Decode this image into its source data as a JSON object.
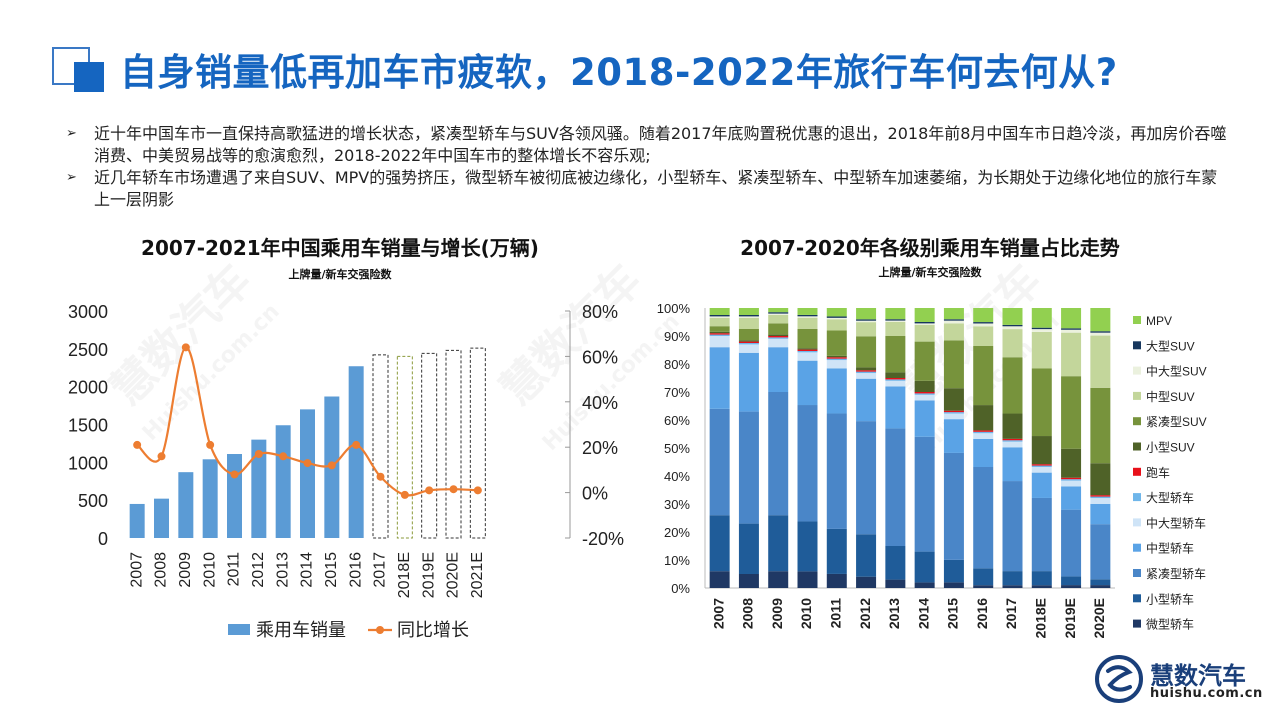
{
  "header": {
    "title": "自身销量低再加车市疲软，2018-2022年旅行车何去何从?"
  },
  "bullets": [
    "近十年中国车市一直保持高歌猛进的增长状态，紧凑型轿车与SUV各领风骚。随着2017年底购置税优惠的退出，2018年前8月中国车市日趋冷淡，再加房价吞噬消费、中美贸易战等的愈演愈烈，2018-2022年中国车市的整体增长不容乐观;",
    "近几年轿车市场遭遇了来自SUV、MPV的强势挤压，微型轿车被彻底被边缘化，小型轿车、紧凑型轿车、中型轿车加速萎缩，为长期处于边缘化地位的旅行车蒙上一层阴影"
  ],
  "watermark": {
    "brand": "慧数汽车",
    "url": "Huishu.com.cn"
  },
  "brand": {
    "name": "慧数汽车",
    "url": "huishu.com.cn"
  },
  "chart_data": [
    {
      "type": "bar",
      "title": "2007-2021年中国乘用车销量与增长(万辆)",
      "subtitle": "上牌量/新车交强险数",
      "categories": [
        "2007",
        "2008",
        "2009",
        "2010",
        "2011",
        "2012",
        "2013",
        "2014",
        "2015",
        "2016",
        "2017",
        "2018E",
        "2019E",
        "2020E",
        "2021E"
      ],
      "series": [
        {
          "name": "乘用车销量",
          "axis": "left",
          "values": [
            450,
            520,
            870,
            1040,
            1110,
            1300,
            1490,
            1700,
            1870,
            2270,
            2420,
            2400,
            2440,
            2480,
            2510
          ],
          "color": "#5b9bd5",
          "forecast_from_index": 10
        },
        {
          "name": "同比增长",
          "type": "line",
          "axis": "right",
          "values": [
            21,
            16,
            64,
            21,
            8,
            17,
            16,
            13,
            12,
            21,
            7,
            -1,
            1,
            1.5,
            1
          ],
          "color": "#ed7d31"
        }
      ],
      "ylim_left": [
        0,
        3000
      ],
      "yticks_left": [
        "0",
        "500",
        "1000",
        "1500",
        "2000",
        "2500",
        "3000"
      ],
      "ylim_right": [
        -20,
        80
      ],
      "yticks_right": [
        "-20%",
        "0%",
        "20%",
        "40%",
        "60%",
        "80%"
      ]
    },
    {
      "type": "bar",
      "stacked": true,
      "percent": true,
      "title": "2007-2020年各级别乘用车销量占比走势",
      "subtitle": "上牌量/新车交强险数",
      "categories": [
        "2007",
        "2008",
        "2009",
        "2010",
        "2011",
        "2012",
        "2013",
        "2014",
        "2015",
        "2016",
        "2017",
        "2018E",
        "2019E",
        "2020E"
      ],
      "yticks": [
        "0%",
        "10%",
        "20%",
        "30%",
        "40%",
        "50%",
        "60%",
        "70%",
        "80%",
        "90%",
        "100%"
      ],
      "series": [
        {
          "name": "微型轿车",
          "color": "#1f3864",
          "values": [
            6,
            5,
            6,
            6,
            5,
            4,
            3,
            2,
            2,
            1,
            1,
            1,
            1,
            1
          ]
        },
        {
          "name": "小型轿车",
          "color": "#1f5c99",
          "values": [
            20,
            18,
            20,
            18,
            16,
            15,
            12,
            11,
            8,
            6,
            5,
            5,
            3,
            2
          ]
        },
        {
          "name": "紧凑型轿车",
          "color": "#4a86c8",
          "values": [
            38,
            40,
            44,
            42,
            41,
            40,
            42,
            41,
            38,
            36,
            32,
            26,
            23,
            19
          ]
        },
        {
          "name": "中型轿车",
          "color": "#5aa3e6",
          "values": [
            22,
            21,
            16,
            16,
            16,
            15,
            15,
            13,
            12,
            10,
            12,
            9,
            8,
            7
          ]
        },
        {
          "name": "中大型轿车",
          "color": "#cfe4f7",
          "values": [
            4,
            3,
            3,
            3,
            3,
            2,
            2,
            2,
            2,
            2,
            2,
            2,
            2,
            2
          ]
        },
        {
          "name": "大型轿车",
          "color": "#6fb6ea",
          "values": [
            0.5,
            0.5,
            0.5,
            0.5,
            0.5,
            0.5,
            0.5,
            0.5,
            0.5,
            0.5,
            0.5,
            0.5,
            0.5,
            0.5
          ]
        },
        {
          "name": "跑车",
          "color": "#e8101a",
          "values": [
            0.5,
            0.5,
            0.5,
            0.5,
            0.5,
            0.5,
            0.5,
            0.5,
            0.5,
            0.5,
            0.5,
            0.5,
            0.5,
            0.5
          ]
        },
        {
          "name": "小型SUV",
          "color": "#4f6228",
          "values": [
            0.5,
            0.5,
            0.5,
            0.5,
            0.5,
            1,
            2,
            4,
            8,
            9,
            9,
            10,
            10,
            11
          ]
        },
        {
          "name": "紧凑型SUV",
          "color": "#77933c",
          "values": [
            2,
            4,
            4,
            7,
            9,
            11,
            13,
            14,
            17,
            21,
            20,
            24,
            25,
            26
          ]
        },
        {
          "name": "中型SUV",
          "color": "#c3d69b",
          "values": [
            3,
            4,
            3,
            4,
            4,
            5,
            5,
            6,
            6,
            7,
            10,
            13,
            15,
            18
          ]
        },
        {
          "name": "中大型SUV",
          "color": "#ebf1de",
          "values": [
            0.5,
            0.5,
            0.5,
            0.5,
            0.5,
            0.5,
            0.5,
            0.5,
            1,
            1,
            1,
            1,
            1,
            1
          ]
        },
        {
          "name": "大型SUV",
          "color": "#17375e",
          "values": [
            0.5,
            0.5,
            0.5,
            0.5,
            0.5,
            0.5,
            0.5,
            0.5,
            0.5,
            0.5,
            0.5,
            0.5,
            0.5,
            0.5
          ]
        },
        {
          "name": "MPV",
          "color": "#92d050",
          "values": [
            2.5,
            2.5,
            1.5,
            2.5,
            3,
            4,
            4,
            5,
            4,
            5,
            6,
            7,
            7,
            8
          ]
        }
      ]
    }
  ]
}
